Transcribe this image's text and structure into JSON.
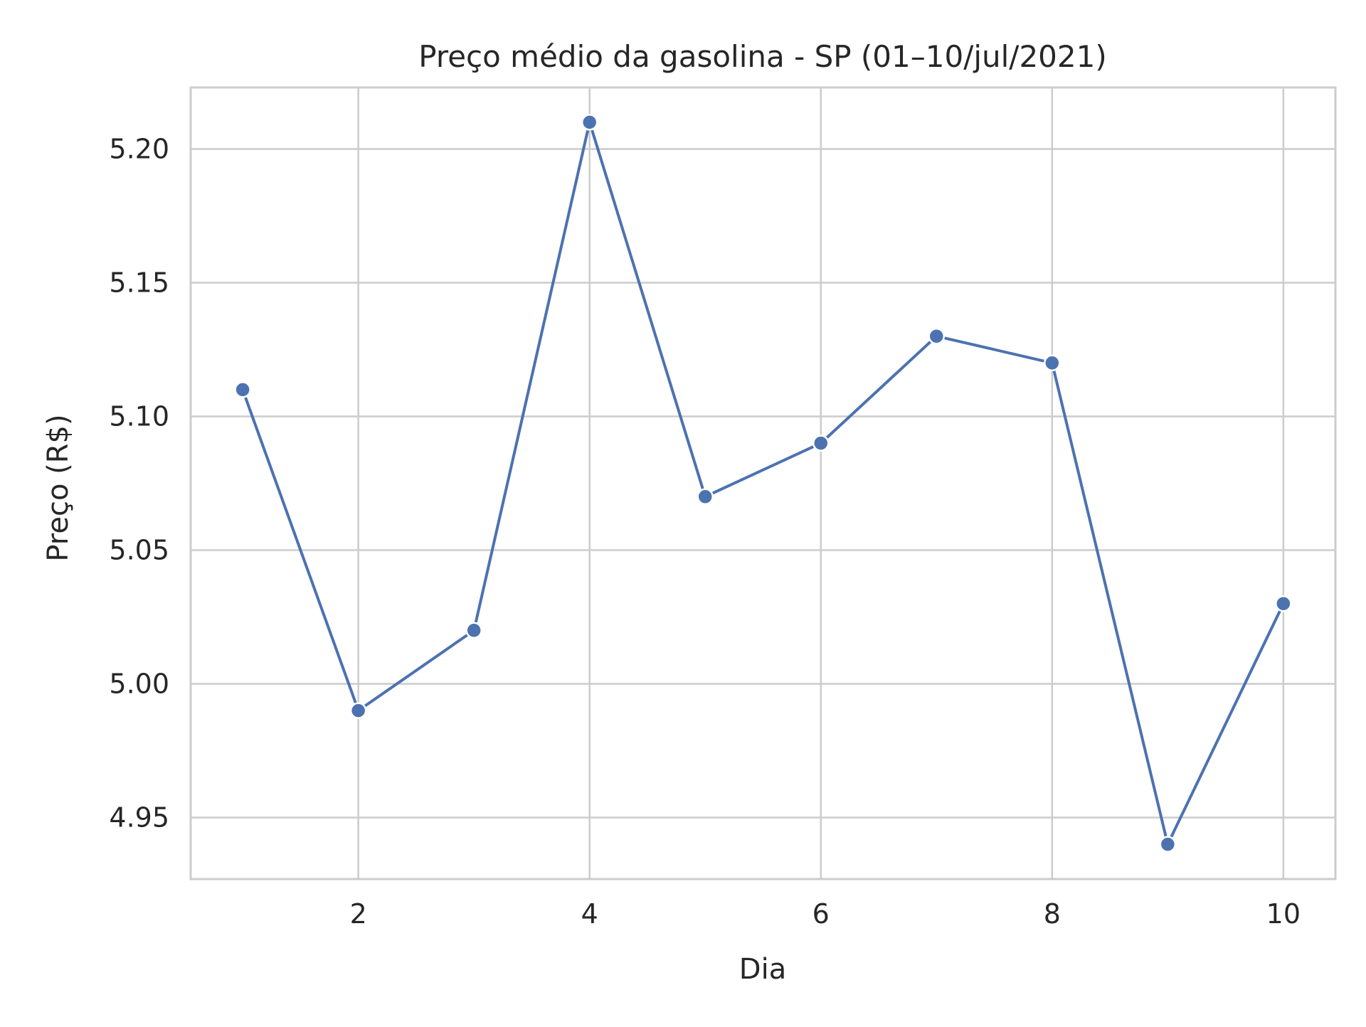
{
  "chart_data": {
    "type": "line",
    "title": "Preço médio da gasolina - SP (01–10/jul/2021)",
    "xlabel": "Dia",
    "ylabel": "Preço (R$)",
    "x": [
      1,
      2,
      3,
      4,
      5,
      6,
      7,
      8,
      9,
      10
    ],
    "series": [
      {
        "values": [
          5.11,
          4.99,
          5.02,
          5.21,
          5.07,
          5.09,
          5.13,
          5.12,
          4.94,
          5.03
        ],
        "color": "#4c72b0",
        "marker": "circle"
      }
    ],
    "xlim": [
      0.55,
      10.45
    ],
    "ylim": [
      4.927,
      5.223
    ],
    "xticks": [
      2,
      4,
      6,
      8,
      10
    ],
    "xtick_labels": [
      "2",
      "4",
      "6",
      "8",
      "10"
    ],
    "yticks": [
      4.95,
      5.0,
      5.05,
      5.1,
      5.15,
      5.2
    ],
    "ytick_labels": [
      "4.95",
      "5.00",
      "5.05",
      "5.10",
      "5.15",
      "5.20"
    ],
    "grid": true,
    "legend": "none",
    "colors": {
      "line": "#4c72b0",
      "grid": "#cccccc",
      "frame": "#cccccc",
      "text": "#262626"
    }
  }
}
